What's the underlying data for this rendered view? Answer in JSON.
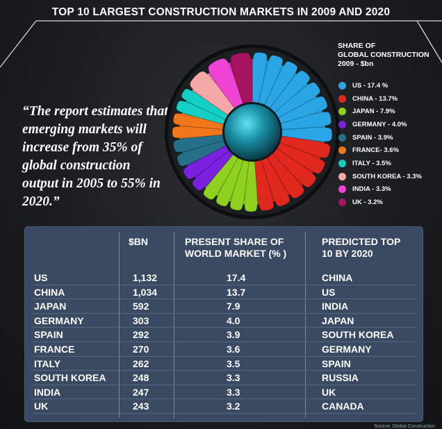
{
  "title": "TOP 10 LARGEST CONSTRUCTION MARKETS IN 2009 AND 2020",
  "quote": "“The report estimates that emerging markets will increase from 35% of global construction output in 2005 to 55% in 2020.”",
  "legend_title": [
    "SHARE OF",
    "GLOBAL CONSTRUCTION",
    "2009 - $bn"
  ],
  "chart_data": {
    "type": "pie",
    "categories": [
      "US",
      "CHINA",
      "JAPAN",
      "GERMANY",
      "SPAIN",
      "FRANCE",
      "ITALY",
      "SOUTH KOREA",
      "INDIA",
      "UK"
    ],
    "values": [
      17.4,
      13.7,
      7.9,
      4.0,
      3.9,
      3.6,
      3.5,
      3.3,
      3.3,
      3.2
    ],
    "legend_labels": [
      "US - 17.4 %",
      "CHINA - 13.7%",
      "JAPAN - 7.9%",
      "GERMANY - 4.0%",
      "SPAIN - 3.9%",
      "FRANCE- 3.6%",
      "ITALY - 3.5%",
      "SOUTH KOREA - 3.3%",
      "INDIA - 3.3%",
      "UK - 3.2%"
    ],
    "colors": [
      "#2aa6e6",
      "#e0281f",
      "#8fd11e",
      "#7b1fe0",
      "#256f88",
      "#f2761a",
      "#14cfc4",
      "#f5a8a8",
      "#ef44d3",
      "#a6135f"
    ],
    "legend_position": "right"
  },
  "table": {
    "headers": [
      "$BN",
      "PRESENT SHARE OF\nWORLD MARKET (% )",
      "PREDICTED TOP\n10 BY 2020"
    ],
    "rows": [
      [
        "US",
        "1,132",
        "17.4",
        "CHINA"
      ],
      [
        "CHINA",
        "1,034",
        "13.7",
        "US"
      ],
      [
        "JAPAN",
        "592",
        "7.9",
        "INDIA"
      ],
      [
        "GERMANY",
        "303",
        "4.0",
        "JAPAN"
      ],
      [
        "SPAIN",
        "292",
        "3.9",
        "SOUTH KOREA"
      ],
      [
        "FRANCE",
        "270",
        "3.6",
        "GERMANY"
      ],
      [
        "ITALY",
        "262",
        "3.5",
        "SPAIN"
      ],
      [
        "SOUTH KOREA",
        "248",
        "3.3",
        "RUSSIA"
      ],
      [
        "INDIA",
        "247",
        "3.3",
        "UK"
      ],
      [
        "UK",
        "243",
        "3.2",
        "CANADA"
      ]
    ]
  },
  "source": "Source: Global Construction"
}
